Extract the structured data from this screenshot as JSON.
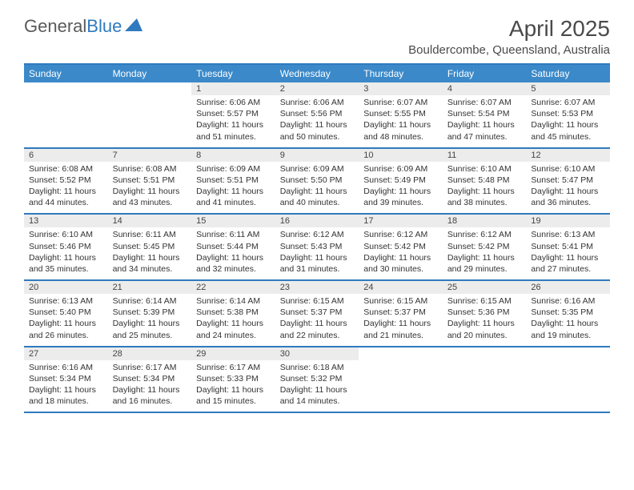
{
  "logo": {
    "text1": "General",
    "text2": "Blue"
  },
  "title": "April 2025",
  "location": "Bouldercombe, Queensland, Australia",
  "weekdays": [
    "Sunday",
    "Monday",
    "Tuesday",
    "Wednesday",
    "Thursday",
    "Friday",
    "Saturday"
  ],
  "colors": {
    "header_bar": "#3b89c9",
    "rule": "#2f7abf",
    "day_num_bg": "#ececec",
    "text": "#333333"
  },
  "weeks": [
    [
      {
        "empty": true
      },
      {
        "empty": true
      },
      {
        "num": "1",
        "sunrise": "Sunrise: 6:06 AM",
        "sunset": "Sunset: 5:57 PM",
        "day1": "Daylight: 11 hours",
        "day2": "and 51 minutes."
      },
      {
        "num": "2",
        "sunrise": "Sunrise: 6:06 AM",
        "sunset": "Sunset: 5:56 PM",
        "day1": "Daylight: 11 hours",
        "day2": "and 50 minutes."
      },
      {
        "num": "3",
        "sunrise": "Sunrise: 6:07 AM",
        "sunset": "Sunset: 5:55 PM",
        "day1": "Daylight: 11 hours",
        "day2": "and 48 minutes."
      },
      {
        "num": "4",
        "sunrise": "Sunrise: 6:07 AM",
        "sunset": "Sunset: 5:54 PM",
        "day1": "Daylight: 11 hours",
        "day2": "and 47 minutes."
      },
      {
        "num": "5",
        "sunrise": "Sunrise: 6:07 AM",
        "sunset": "Sunset: 5:53 PM",
        "day1": "Daylight: 11 hours",
        "day2": "and 45 minutes."
      }
    ],
    [
      {
        "num": "6",
        "sunrise": "Sunrise: 6:08 AM",
        "sunset": "Sunset: 5:52 PM",
        "day1": "Daylight: 11 hours",
        "day2": "and 44 minutes."
      },
      {
        "num": "7",
        "sunrise": "Sunrise: 6:08 AM",
        "sunset": "Sunset: 5:51 PM",
        "day1": "Daylight: 11 hours",
        "day2": "and 43 minutes."
      },
      {
        "num": "8",
        "sunrise": "Sunrise: 6:09 AM",
        "sunset": "Sunset: 5:51 PM",
        "day1": "Daylight: 11 hours",
        "day2": "and 41 minutes."
      },
      {
        "num": "9",
        "sunrise": "Sunrise: 6:09 AM",
        "sunset": "Sunset: 5:50 PM",
        "day1": "Daylight: 11 hours",
        "day2": "and 40 minutes."
      },
      {
        "num": "10",
        "sunrise": "Sunrise: 6:09 AM",
        "sunset": "Sunset: 5:49 PM",
        "day1": "Daylight: 11 hours",
        "day2": "and 39 minutes."
      },
      {
        "num": "11",
        "sunrise": "Sunrise: 6:10 AM",
        "sunset": "Sunset: 5:48 PM",
        "day1": "Daylight: 11 hours",
        "day2": "and 38 minutes."
      },
      {
        "num": "12",
        "sunrise": "Sunrise: 6:10 AM",
        "sunset": "Sunset: 5:47 PM",
        "day1": "Daylight: 11 hours",
        "day2": "and 36 minutes."
      }
    ],
    [
      {
        "num": "13",
        "sunrise": "Sunrise: 6:10 AM",
        "sunset": "Sunset: 5:46 PM",
        "day1": "Daylight: 11 hours",
        "day2": "and 35 minutes."
      },
      {
        "num": "14",
        "sunrise": "Sunrise: 6:11 AM",
        "sunset": "Sunset: 5:45 PM",
        "day1": "Daylight: 11 hours",
        "day2": "and 34 minutes."
      },
      {
        "num": "15",
        "sunrise": "Sunrise: 6:11 AM",
        "sunset": "Sunset: 5:44 PM",
        "day1": "Daylight: 11 hours",
        "day2": "and 32 minutes."
      },
      {
        "num": "16",
        "sunrise": "Sunrise: 6:12 AM",
        "sunset": "Sunset: 5:43 PM",
        "day1": "Daylight: 11 hours",
        "day2": "and 31 minutes."
      },
      {
        "num": "17",
        "sunrise": "Sunrise: 6:12 AM",
        "sunset": "Sunset: 5:42 PM",
        "day1": "Daylight: 11 hours",
        "day2": "and 30 minutes."
      },
      {
        "num": "18",
        "sunrise": "Sunrise: 6:12 AM",
        "sunset": "Sunset: 5:42 PM",
        "day1": "Daylight: 11 hours",
        "day2": "and 29 minutes."
      },
      {
        "num": "19",
        "sunrise": "Sunrise: 6:13 AM",
        "sunset": "Sunset: 5:41 PM",
        "day1": "Daylight: 11 hours",
        "day2": "and 27 minutes."
      }
    ],
    [
      {
        "num": "20",
        "sunrise": "Sunrise: 6:13 AM",
        "sunset": "Sunset: 5:40 PM",
        "day1": "Daylight: 11 hours",
        "day2": "and 26 minutes."
      },
      {
        "num": "21",
        "sunrise": "Sunrise: 6:14 AM",
        "sunset": "Sunset: 5:39 PM",
        "day1": "Daylight: 11 hours",
        "day2": "and 25 minutes."
      },
      {
        "num": "22",
        "sunrise": "Sunrise: 6:14 AM",
        "sunset": "Sunset: 5:38 PM",
        "day1": "Daylight: 11 hours",
        "day2": "and 24 minutes."
      },
      {
        "num": "23",
        "sunrise": "Sunrise: 6:15 AM",
        "sunset": "Sunset: 5:37 PM",
        "day1": "Daylight: 11 hours",
        "day2": "and 22 minutes."
      },
      {
        "num": "24",
        "sunrise": "Sunrise: 6:15 AM",
        "sunset": "Sunset: 5:37 PM",
        "day1": "Daylight: 11 hours",
        "day2": "and 21 minutes."
      },
      {
        "num": "25",
        "sunrise": "Sunrise: 6:15 AM",
        "sunset": "Sunset: 5:36 PM",
        "day1": "Daylight: 11 hours",
        "day2": "and 20 minutes."
      },
      {
        "num": "26",
        "sunrise": "Sunrise: 6:16 AM",
        "sunset": "Sunset: 5:35 PM",
        "day1": "Daylight: 11 hours",
        "day2": "and 19 minutes."
      }
    ],
    [
      {
        "num": "27",
        "sunrise": "Sunrise: 6:16 AM",
        "sunset": "Sunset: 5:34 PM",
        "day1": "Daylight: 11 hours",
        "day2": "and 18 minutes."
      },
      {
        "num": "28",
        "sunrise": "Sunrise: 6:17 AM",
        "sunset": "Sunset: 5:34 PM",
        "day1": "Daylight: 11 hours",
        "day2": "and 16 minutes."
      },
      {
        "num": "29",
        "sunrise": "Sunrise: 6:17 AM",
        "sunset": "Sunset: 5:33 PM",
        "day1": "Daylight: 11 hours",
        "day2": "and 15 minutes."
      },
      {
        "num": "30",
        "sunrise": "Sunrise: 6:18 AM",
        "sunset": "Sunset: 5:32 PM",
        "day1": "Daylight: 11 hours",
        "day2": "and 14 minutes."
      },
      {
        "empty": true
      },
      {
        "empty": true
      },
      {
        "empty": true
      }
    ]
  ]
}
